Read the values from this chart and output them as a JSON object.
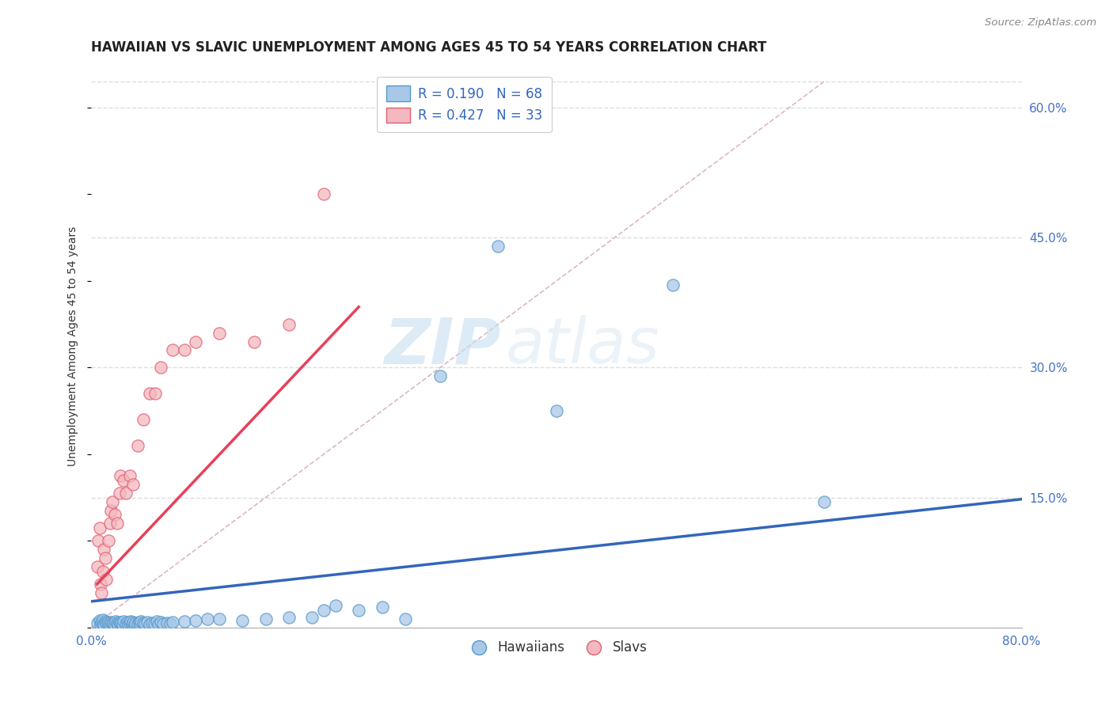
{
  "title": "HAWAIIAN VS SLAVIC UNEMPLOYMENT AMONG AGES 45 TO 54 YEARS CORRELATION CHART",
  "source_text": "Source: ZipAtlas.com",
  "ylabel": "Unemployment Among Ages 45 to 54 years",
  "xlim": [
    0.0,
    0.8
  ],
  "ylim": [
    0.0,
    0.65
  ],
  "ytick_positions": [
    0.15,
    0.3,
    0.45,
    0.6
  ],
  "ytick_labels": [
    "15.0%",
    "30.0%",
    "45.0%",
    "60.0%"
  ],
  "legend_r_hawaiian": "R = 0.190",
  "legend_n_hawaiian": "N = 68",
  "legend_r_slavic": "R = 0.427",
  "legend_n_slavic": "N = 33",
  "hawaiian_color": "#a8c8e8",
  "hawaiian_edge_color": "#5599cc",
  "slavic_color": "#f4b8c0",
  "slavic_edge_color": "#e06070",
  "trend_hawaiian_color": "#3366bb",
  "trend_slavic_color": "#e8405a",
  "ref_line_color": "#cccccc",
  "background_color": "#ffffff",
  "grid_color": "#dddddd",
  "watermark_zip": "ZIP",
  "watermark_atlas": "atlas",
  "title_fontsize": 12,
  "axis_label_fontsize": 10,
  "tick_fontsize": 11,
  "legend_fontsize": 12,
  "hawaiian_x": [
    0.005,
    0.007,
    0.008,
    0.009,
    0.01,
    0.01,
    0.011,
    0.012,
    0.013,
    0.014,
    0.015,
    0.016,
    0.017,
    0.018,
    0.019,
    0.02,
    0.021,
    0.022,
    0.023,
    0.024,
    0.025,
    0.026,
    0.027,
    0.028,
    0.03,
    0.031,
    0.032,
    0.033,
    0.034,
    0.035,
    0.036,
    0.037,
    0.038,
    0.04,
    0.041,
    0.042,
    0.043,
    0.045,
    0.046,
    0.048,
    0.05,
    0.052,
    0.054,
    0.056,
    0.058,
    0.06,
    0.062,
    0.065,
    0.068,
    0.07,
    0.08,
    0.09,
    0.1,
    0.11,
    0.13,
    0.15,
    0.17,
    0.19,
    0.2,
    0.21,
    0.23,
    0.25,
    0.27,
    0.3,
    0.35,
    0.4,
    0.5,
    0.63
  ],
  "hawaiian_y": [
    0.005,
    0.008,
    0.003,
    0.006,
    0.004,
    0.009,
    0.003,
    0.007,
    0.005,
    0.006,
    0.004,
    0.003,
    0.006,
    0.005,
    0.004,
    0.003,
    0.007,
    0.005,
    0.003,
    0.006,
    0.004,
    0.005,
    0.003,
    0.007,
    0.004,
    0.006,
    0.003,
    0.005,
    0.007,
    0.004,
    0.006,
    0.003,
    0.005,
    0.004,
    0.006,
    0.003,
    0.007,
    0.005,
    0.004,
    0.006,
    0.003,
    0.005,
    0.004,
    0.007,
    0.003,
    0.006,
    0.004,
    0.005,
    0.004,
    0.006,
    0.007,
    0.008,
    0.01,
    0.01,
    0.008,
    0.01,
    0.012,
    0.012,
    0.02,
    0.025,
    0.02,
    0.023,
    0.01,
    0.29,
    0.44,
    0.25,
    0.395,
    0.145
  ],
  "slavic_x": [
    0.005,
    0.006,
    0.007,
    0.008,
    0.009,
    0.01,
    0.011,
    0.012,
    0.013,
    0.015,
    0.016,
    0.017,
    0.018,
    0.02,
    0.022,
    0.024,
    0.025,
    0.028,
    0.03,
    0.033,
    0.036,
    0.04,
    0.045,
    0.05,
    0.055,
    0.06,
    0.07,
    0.08,
    0.09,
    0.11,
    0.14,
    0.17,
    0.2
  ],
  "slavic_y": [
    0.07,
    0.1,
    0.115,
    0.05,
    0.04,
    0.065,
    0.09,
    0.08,
    0.055,
    0.1,
    0.12,
    0.135,
    0.145,
    0.13,
    0.12,
    0.155,
    0.175,
    0.17,
    0.155,
    0.175,
    0.165,
    0.21,
    0.24,
    0.27,
    0.27,
    0.3,
    0.32,
    0.32,
    0.33,
    0.34,
    0.33,
    0.35,
    0.5
  ],
  "trend_haw_x0": 0.0,
  "trend_haw_x1": 0.8,
  "trend_haw_y0": 0.03,
  "trend_haw_y1": 0.148,
  "trend_slav_x0": 0.005,
  "trend_slav_x1": 0.23,
  "trend_slav_y0": 0.05,
  "trend_slav_y1": 0.37
}
